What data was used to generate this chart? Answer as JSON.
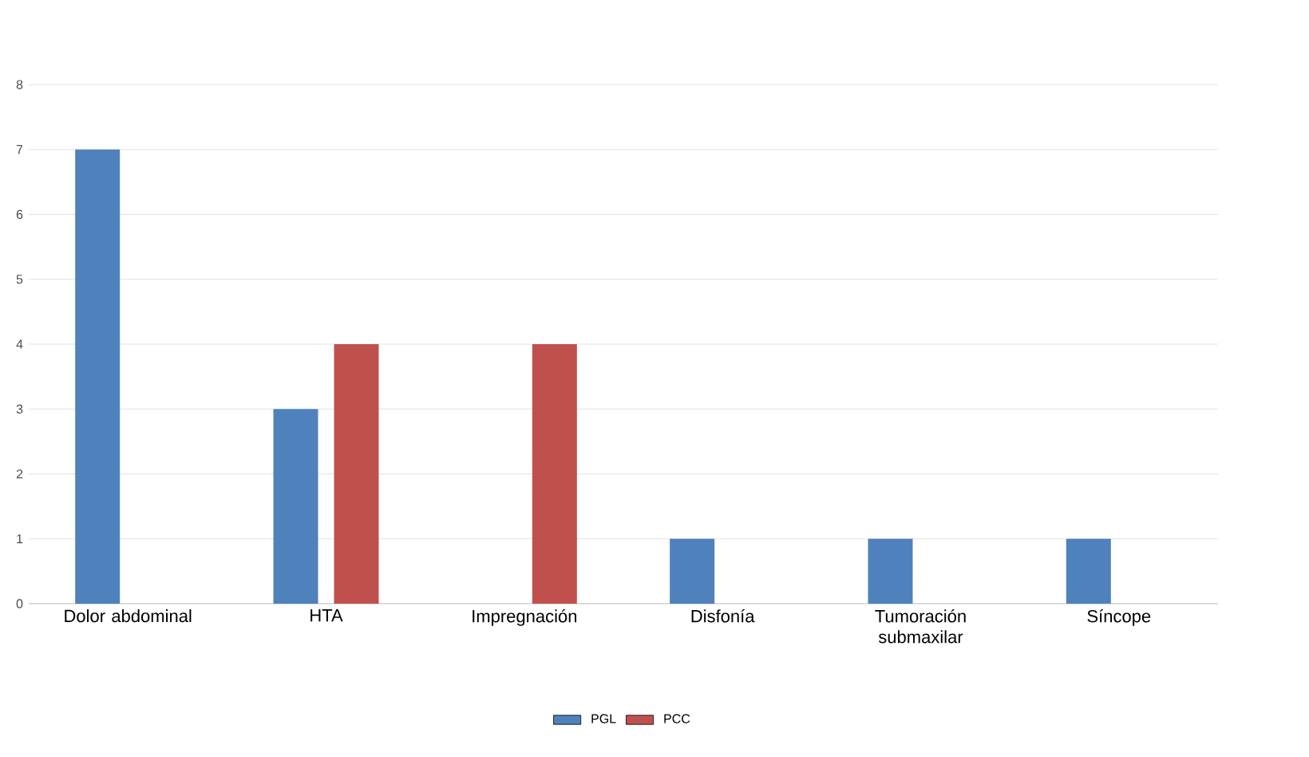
{
  "chart_data": {
    "type": "bar",
    "categories": [
      "Dolor abdominal",
      "HTA",
      "Impregnación",
      "Disfonía",
      "Tumoración submaxilar",
      "Síncope"
    ],
    "series": [
      {
        "name": "PGL",
        "color": "#4f81bd",
        "values": [
          7,
          3,
          null,
          1,
          1,
          1
        ]
      },
      {
        "name": "PCC",
        "color": "#c0504d",
        "values": [
          null,
          4,
          4,
          null,
          null,
          null
        ]
      }
    ],
    "ylim": [
      0,
      8
    ],
    "yticks": [
      0,
      1,
      2,
      3,
      4,
      5,
      6,
      7,
      8
    ],
    "grid": "y",
    "legend": "bottom"
  }
}
